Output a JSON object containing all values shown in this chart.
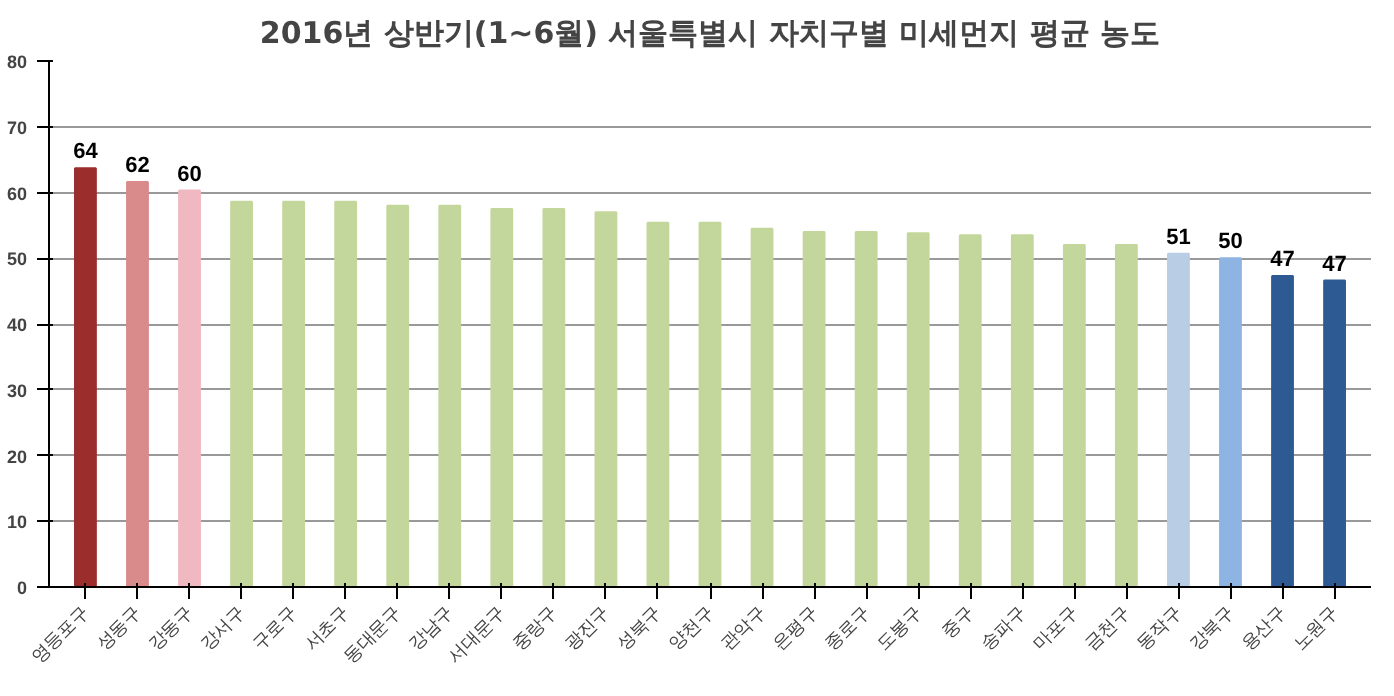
{
  "chart_data": {
    "type": "bar",
    "title": "2016년 상반기(1~6월) 서울특별시 자치구별 미세먼지 평균 농도",
    "categories": [
      "영등포구",
      "성동구",
      "강동구",
      "강서구",
      "구로구",
      "서초구",
      "동대문구",
      "강남구",
      "서대문구",
      "중랑구",
      "광진구",
      "성북구",
      "양천구",
      "관악구",
      "은평구",
      "종로구",
      "도봉구",
      "중구",
      "송파구",
      "마포구",
      "금천구",
      "동작구",
      "강북구",
      "용산구",
      "노원구"
    ],
    "values": [
      63.7,
      61.6,
      60.3,
      58.6,
      58.6,
      58.6,
      58,
      58,
      57.5,
      57.5,
      57,
      55.4,
      55.4,
      54.5,
      54,
      54,
      53.8,
      53.5,
      53.5,
      52,
      52,
      50.7,
      50,
      47.3,
      46.6
    ],
    "value_labels": [
      "64",
      "62",
      "60",
      null,
      null,
      null,
      null,
      null,
      null,
      null,
      null,
      null,
      null,
      null,
      null,
      null,
      null,
      null,
      null,
      null,
      null,
      "51",
      "50",
      "47",
      "47"
    ],
    "colors": [
      "#9b2d2d",
      "#d98a8a",
      "#f0b8c0",
      "#c3d69b",
      "#c3d69b",
      "#c3d69b",
      "#c3d69b",
      "#c3d69b",
      "#c3d69b",
      "#c3d69b",
      "#c3d69b",
      "#c3d69b",
      "#c3d69b",
      "#c3d69b",
      "#c3d69b",
      "#c3d69b",
      "#c3d69b",
      "#c3d69b",
      "#c3d69b",
      "#c3d69b",
      "#c3d69b",
      "#b9cde5",
      "#8eb4e3",
      "#2e5a94",
      "#2e5a94"
    ],
    "ylim": [
      0,
      80
    ],
    "yticks": [
      0,
      10,
      20,
      30,
      40,
      50,
      60,
      70,
      80
    ],
    "grid": "y"
  }
}
